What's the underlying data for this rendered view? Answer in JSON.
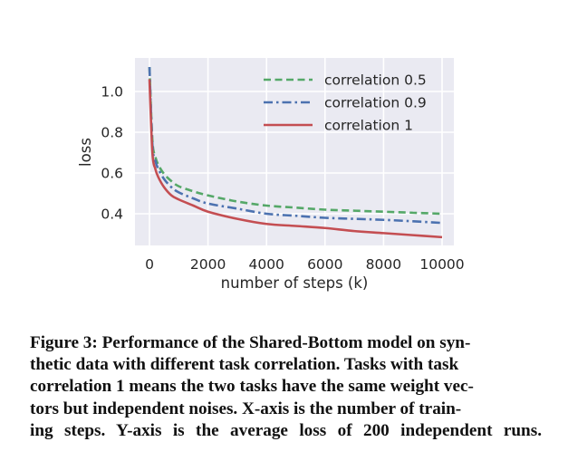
{
  "chart_data": {
    "type": "line",
    "title": "",
    "xlabel": "number of steps (k)",
    "ylabel": "loss",
    "xlim": [
      -800,
      10500
    ],
    "ylim": [
      0.245,
      1.17
    ],
    "xticks": [
      0,
      2000,
      4000,
      6000,
      8000,
      10000
    ],
    "xtick_labels": [
      "0",
      "2000",
      "4000",
      "6000",
      "8000",
      "10000"
    ],
    "yticks": [
      0.4,
      0.6,
      0.8,
      1.0
    ],
    "ytick_labels": [
      "0.4",
      "0.6",
      "0.8",
      "1.0"
    ],
    "grid": true,
    "legend_position": "upper right",
    "x": [
      0,
      100,
      200,
      300,
      500,
      750,
      1000,
      1500,
      2000,
      3000,
      4000,
      5000,
      6000,
      7000,
      8000,
      9000,
      10000
    ],
    "series": [
      {
        "name": "correlation 0.5",
        "color": "#55a868",
        "style": "dashed",
        "values": [
          1.12,
          0.76,
          0.68,
          0.64,
          0.595,
          0.56,
          0.535,
          0.51,
          0.49,
          0.46,
          0.44,
          0.43,
          0.42,
          0.415,
          0.41,
          0.405,
          0.4
        ]
      },
      {
        "name": "correlation 0.9",
        "color": "#4c72b0",
        "style": "dashdot",
        "values": [
          1.12,
          0.74,
          0.66,
          0.62,
          0.57,
          0.53,
          0.505,
          0.475,
          0.45,
          0.425,
          0.4,
          0.39,
          0.38,
          0.375,
          0.37,
          0.363,
          0.355
        ]
      },
      {
        "name": "correlation 1",
        "color": "#c44e52",
        "style": "solid",
        "values": [
          1.06,
          0.7,
          0.62,
          0.58,
          0.53,
          0.49,
          0.47,
          0.44,
          0.41,
          0.375,
          0.35,
          0.34,
          0.33,
          0.315,
          0.305,
          0.295,
          0.285
        ]
      }
    ]
  },
  "caption": {
    "label": "Figure 3:",
    "text": "Performance of the Shared-Bottom model on synthetic data with different task correlation. Tasks with task correlation 1 means the two tasks have the same weight vectors but independent noises. X-axis is the number of training steps. Y-axis is the average loss of 200 independent runs.",
    "lines": [
      "Figure 3: Performance of the Shared-Bottom model on syn-",
      "thetic data with different task correlation. Tasks with task",
      "correlation 1 means the two tasks have the same weight vec-",
      "tors but independent noises. X-axis is the number of train-",
      "ing steps. Y-axis is the average loss of 200 independent runs."
    ]
  },
  "style": {
    "plot_bg": "#eaeaf2",
    "grid_color": "#ffffff",
    "text_color": "#262626"
  }
}
